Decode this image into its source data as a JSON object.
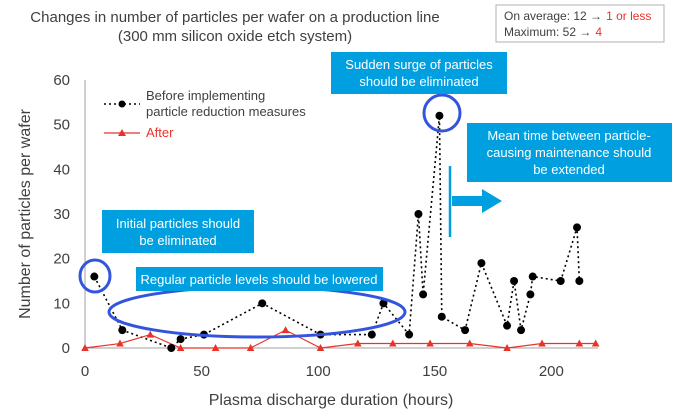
{
  "chart_data": {
    "type": "line",
    "title_line1": "Changes in number of particles per wafer on a production line",
    "title_line2": "(300 mm silicon oxide etch system)",
    "xlabel": "Plasma discharge duration (hours)",
    "ylabel": "Number of particles per wafer",
    "xlim": [
      0,
      220
    ],
    "ylim": [
      0,
      60
    ],
    "xticks": [
      0,
      50,
      100,
      150,
      200
    ],
    "yticks": [
      0,
      10,
      20,
      30,
      40,
      50,
      60
    ],
    "grid": false,
    "legend_position": "top-left",
    "series": [
      {
        "name": "Before implementing particle reduction measures",
        "legend_line1": "Before implementing",
        "legend_line2": "particle reduction measures",
        "color": "#000000",
        "style": "dotted",
        "marker": "circle",
        "x": [
          4,
          16,
          37,
          41,
          51,
          76,
          101,
          123,
          128,
          139,
          143,
          145,
          152,
          153,
          163,
          170,
          181,
          184,
          187,
          191,
          192,
          204,
          211,
          212
        ],
        "y": [
          16,
          4,
          0,
          2,
          3,
          10,
          3,
          3,
          10,
          3,
          30,
          12,
          52,
          7,
          4,
          19,
          5,
          15,
          4,
          12,
          16,
          15,
          27,
          15
        ]
      },
      {
        "name": "After",
        "legend_line1": "After",
        "color": "#e8332a",
        "style": "solid",
        "marker": "triangle",
        "x": [
          0,
          15,
          28,
          41,
          56,
          71,
          86,
          101,
          117,
          132,
          148,
          165,
          181,
          196,
          212,
          219
        ],
        "y": [
          0,
          1,
          3,
          0,
          0,
          0,
          4,
          0,
          1,
          1,
          1,
          1,
          0,
          1,
          1,
          1
        ]
      }
    ],
    "summary": {
      "avg_label": "On average: 12 →",
      "avg_value": "1 or less",
      "max_label": "Maximum: 52 →",
      "max_value": "4",
      "highlight_color": "#e8332a"
    },
    "callouts": {
      "surge_line1": "Sudden surge of particles",
      "surge_line2": "should be eliminated",
      "mtbm_line1": "Mean time between particle-",
      "mtbm_line2": "causing maintenance should",
      "mtbm_line3": "be extended",
      "initial_line1": "Initial particles should",
      "initial_line2": "be eliminated",
      "regular_line1": "Regular particle levels should be lowered",
      "callout_color": "#00a0e0",
      "ellipse_color": "#3355dd"
    }
  }
}
